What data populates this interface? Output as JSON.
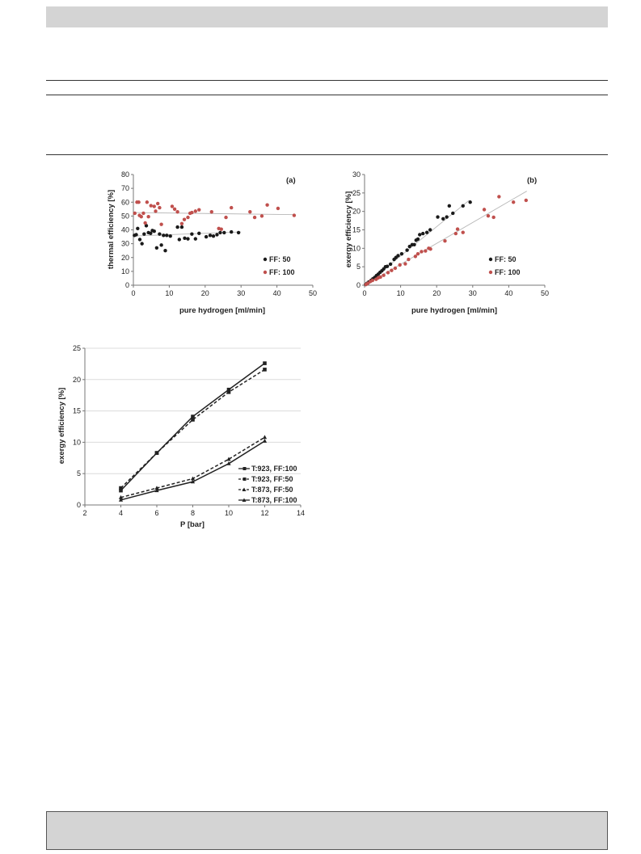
{
  "chart_data": [
    {
      "type": "scatter",
      "panel_label": "(a)",
      "xlabel": "pure hydrogen [ml/min]",
      "ylabel": "thermal efficiency [%]",
      "xlim": [
        0,
        50
      ],
      "ylim": [
        0,
        80
      ],
      "xticks": [
        "0",
        "10",
        "20",
        "30",
        "40",
        "50"
      ],
      "yticks": [
        "0",
        "10",
        "20",
        "30",
        "40",
        "50",
        "60",
        "70",
        "80"
      ],
      "grid": false,
      "legend_position": "bottom-right",
      "series": [
        {
          "name": "FF: 50",
          "color": "#1a1a1a",
          "trend": [
            [
              0,
              35.5
            ],
            [
              30,
              38.5
            ]
          ],
          "points": [
            [
              0.3,
              36
            ],
            [
              0.8,
              36.5
            ],
            [
              1.2,
              41
            ],
            [
              1.8,
              33
            ],
            [
              2.4,
              30
            ],
            [
              3,
              37
            ],
            [
              3.6,
              43
            ],
            [
              4.2,
              38
            ],
            [
              4.8,
              37.5
            ],
            [
              5.3,
              39.5
            ],
            [
              5.8,
              39
            ],
            [
              6.5,
              27
            ],
            [
              7.3,
              37
            ],
            [
              7.8,
              29
            ],
            [
              8.4,
              36
            ],
            [
              8.9,
              25
            ],
            [
              9.3,
              36
            ],
            [
              10.3,
              35.5
            ],
            [
              12.3,
              42
            ],
            [
              12.8,
              33
            ],
            [
              13.5,
              42
            ],
            [
              14.3,
              34
            ],
            [
              15.2,
              33.5
            ],
            [
              16.3,
              37
            ],
            [
              17.3,
              33.5
            ],
            [
              18.3,
              37.5
            ],
            [
              20.3,
              35
            ],
            [
              21.4,
              36
            ],
            [
              22.3,
              35.5
            ],
            [
              23.3,
              36.5
            ],
            [
              24.2,
              38
            ],
            [
              25.3,
              38
            ],
            [
              27.3,
              38.5
            ],
            [
              29.3,
              38
            ]
          ]
        },
        {
          "name": "FF: 100",
          "color": "#c0504d",
          "trend": [
            [
              0,
              52.5
            ],
            [
              45,
              51
            ]
          ],
          "points": [
            [
              0.4,
              52
            ],
            [
              1,
              60
            ],
            [
              1.5,
              60
            ],
            [
              1.7,
              50.5
            ],
            [
              2.2,
              49.5
            ],
            [
              2.8,
              52
            ],
            [
              3.3,
              45
            ],
            [
              3.8,
              60
            ],
            [
              4.2,
              49.5
            ],
            [
              4.9,
              57.5
            ],
            [
              5.8,
              57
            ],
            [
              6.2,
              53.5
            ],
            [
              6.8,
              59
            ],
            [
              7.3,
              56
            ],
            [
              7.8,
              44
            ],
            [
              10.8,
              57
            ],
            [
              11.5,
              55
            ],
            [
              12.3,
              53
            ],
            [
              13.5,
              44.5
            ],
            [
              14.2,
              47.5
            ],
            [
              15.2,
              49
            ],
            [
              15.8,
              52
            ],
            [
              16.3,
              52.5
            ],
            [
              17.3,
              53.5
            ],
            [
              18.3,
              54.5
            ],
            [
              21.8,
              53
            ],
            [
              23.8,
              41
            ],
            [
              24.5,
              40.5
            ],
            [
              25.8,
              49
            ],
            [
              27.3,
              56
            ],
            [
              32.5,
              53
            ],
            [
              33.8,
              49
            ],
            [
              35.8,
              50
            ],
            [
              37.3,
              58
            ],
            [
              40.3,
              55.5
            ],
            [
              44.8,
              50.5
            ]
          ]
        }
      ]
    },
    {
      "type": "scatter",
      "panel_label": "(b)",
      "xlabel": "pure hydrogen [ml/min]",
      "ylabel": "exergy efficiency [%]",
      "xlim": [
        0,
        50
      ],
      "ylim": [
        0,
        30
      ],
      "xticks": [
        "0",
        "10",
        "20",
        "30",
        "40",
        "50"
      ],
      "yticks": [
        "0",
        "5",
        "10",
        "15",
        "20",
        "25",
        "30"
      ],
      "grid": false,
      "legend_position": "bottom-right",
      "series": [
        {
          "name": "FF: 50",
          "color": "#1a1a1a",
          "trend": [
            [
              0,
              0
            ],
            [
              29,
              23
            ]
          ],
          "points": [
            [
              0.3,
              0.2
            ],
            [
              0.7,
              0.5
            ],
            [
              1.2,
              0.9
            ],
            [
              1.8,
              1.3
            ],
            [
              2.3,
              1.7
            ],
            [
              2.8,
              2.1
            ],
            [
              3.3,
              2.6
            ],
            [
              3.8,
              3.0
            ],
            [
              4.3,
              3.5
            ],
            [
              4.8,
              3.9
            ],
            [
              5.3,
              4.4
            ],
            [
              5.8,
              5.0
            ],
            [
              6.3,
              5.1
            ],
            [
              7.2,
              5.7
            ],
            [
              8.2,
              7.0
            ],
            [
              8.7,
              7.5
            ],
            [
              9.3,
              8.0
            ],
            [
              10.3,
              8.5
            ],
            [
              11.8,
              9.5
            ],
            [
              12.5,
              10.5
            ],
            [
              13.2,
              11.0
            ],
            [
              13.8,
              11.0
            ],
            [
              14.3,
              12.2
            ],
            [
              14.8,
              12.5
            ],
            [
              15.3,
              13.7
            ],
            [
              16.2,
              14.0
            ],
            [
              17.3,
              14.3
            ],
            [
              18.2,
              15.0
            ],
            [
              20.3,
              18.5
            ],
            [
              21.8,
              18.0
            ],
            [
              22.8,
              18.5
            ],
            [
              23.5,
              21.5
            ],
            [
              24.5,
              19.5
            ],
            [
              27.3,
              21.5
            ],
            [
              29.3,
              22.5
            ]
          ]
        },
        {
          "name": "FF: 100",
          "color": "#c0504d",
          "trend": [
            [
              0,
              0
            ],
            [
              45,
              25.5
            ]
          ],
          "points": [
            [
              0.4,
              0.2
            ],
            [
              0.9,
              0.5
            ],
            [
              1.6,
              1.0
            ],
            [
              2.2,
              1.3
            ],
            [
              3.2,
              1.6
            ],
            [
              3.8,
              2.0
            ],
            [
              4.4,
              2.2
            ],
            [
              5.3,
              2.7
            ],
            [
              6.5,
              3.4
            ],
            [
              7.5,
              4.0
            ],
            [
              8.5,
              4.6
            ],
            [
              9.8,
              5.5
            ],
            [
              11.3,
              5.8
            ],
            [
              12.2,
              7.0
            ],
            [
              14.1,
              7.8
            ],
            [
              14.8,
              8.5
            ],
            [
              15.8,
              9.1
            ],
            [
              16.9,
              9.3
            ],
            [
              17.8,
              10.0
            ],
            [
              18.3,
              9.8
            ],
            [
              22.3,
              12.0
            ],
            [
              25.3,
              14.0
            ],
            [
              25.8,
              15.2
            ],
            [
              27.3,
              14.3
            ],
            [
              33.2,
              20.5
            ],
            [
              34.3,
              18.8
            ],
            [
              35.8,
              18.4
            ],
            [
              37.3,
              24.0
            ],
            [
              41.3,
              22.5
            ],
            [
              44.8,
              23.0
            ]
          ]
        }
      ]
    },
    {
      "type": "line",
      "xlabel": "P [bar]",
      "ylabel": "exergy efficiency [%]",
      "xlim": [
        2,
        14
      ],
      "ylim": [
        0,
        25
      ],
      "xticks": [
        "2",
        "4",
        "6",
        "8",
        "10",
        "12",
        "14"
      ],
      "yticks": [
        "0",
        "5",
        "10",
        "15",
        "20",
        "25"
      ],
      "grid": true,
      "legend_position": "bottom-right",
      "x": [
        4,
        6,
        8,
        10,
        12
      ],
      "series": [
        {
          "name": "T:923, FF:100",
          "marker": "square",
          "dash": "solid",
          "values": [
            2.3,
            8.3,
            14.1,
            18.4,
            22.6
          ]
        },
        {
          "name": "T:923, FF:50",
          "marker": "square",
          "dash": "dashed",
          "values": [
            2.7,
            8.3,
            13.6,
            18.0,
            21.6
          ]
        },
        {
          "name": "T:873, FF:50",
          "marker": "triangle",
          "dash": "dashed",
          "values": [
            1.2,
            2.7,
            4.2,
            7.3,
            10.8
          ]
        },
        {
          "name": "T:873, FF:100",
          "marker": "triangle",
          "dash": "solid",
          "values": [
            0.8,
            2.3,
            3.7,
            6.6,
            10.2
          ]
        }
      ]
    }
  ]
}
